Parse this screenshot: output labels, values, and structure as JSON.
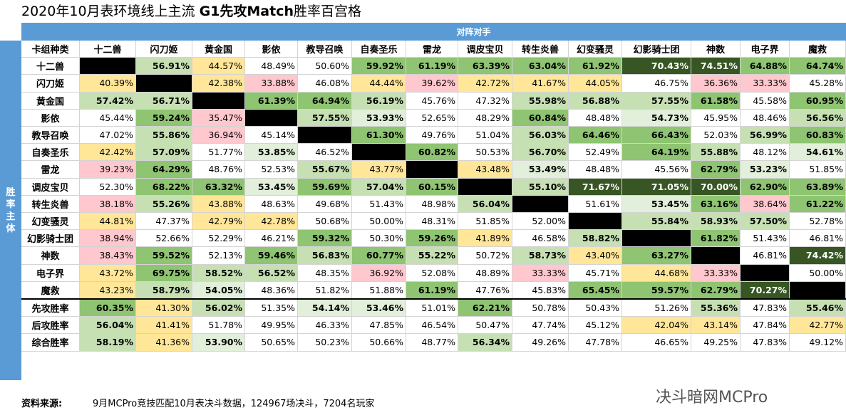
{
  "title_prefix": "2020年10月表环境线上主流 ",
  "title_bold": "G1先攻Match",
  "title_suffix": "胜率百宫格",
  "chart_data": {
    "type": "heatmap",
    "top_header": "对阵对手",
    "side_header": [
      "胜",
      "率",
      "主",
      "体"
    ],
    "corner_label": "卡组种类",
    "columns": [
      "十二兽",
      "闪刀姬",
      "黄金国",
      "影依",
      "教导召唤",
      "自奏圣乐",
      "雷龙",
      "调皮宝贝",
      "转生炎兽",
      "幻变骚灵",
      "幻影骑士团",
      "神数",
      "电子界",
      "魔救"
    ],
    "matrix_rows": [
      {
        "name": "十二兽",
        "values": [
          "",
          "56.91%",
          "44.57%",
          "48.49%",
          "50.60%",
          "59.92%",
          "61.19%",
          "63.39%",
          "63.04%",
          "61.92%",
          "70.43%",
          "74.51%",
          "64.88%",
          "64.74%"
        ]
      },
      {
        "name": "闪刀姬",
        "values": [
          "40.39%",
          "",
          "42.38%",
          "33.88%",
          "46.08%",
          "44.44%",
          "39.62%",
          "42.72%",
          "41.67%",
          "44.05%",
          "46.75%",
          "36.36%",
          "33.33%",
          "45.28%"
        ]
      },
      {
        "name": "黄金国",
        "values": [
          "57.42%",
          "56.71%",
          "",
          "61.39%",
          "64.94%",
          "56.19%",
          "45.76%",
          "47.32%",
          "55.98%",
          "56.88%",
          "57.55%",
          "61.58%",
          "45.58%",
          "60.95%"
        ]
      },
      {
        "name": "影依",
        "values": [
          "45.44%",
          "59.24%",
          "35.47%",
          "",
          "57.55%",
          "53.93%",
          "52.65%",
          "48.29%",
          "60.84%",
          "48.48%",
          "54.73%",
          "45.95%",
          "48.46%",
          "56.56%"
        ]
      },
      {
        "name": "教导召唤",
        "values": [
          "47.02%",
          "55.86%",
          "36.94%",
          "45.14%",
          "",
          "61.30%",
          "49.76%",
          "51.04%",
          "56.03%",
          "64.46%",
          "66.43%",
          "52.03%",
          "56.99%",
          "60.83%"
        ]
      },
      {
        "name": "自奏圣乐",
        "values": [
          "42.42%",
          "57.09%",
          "51.77%",
          "53.85%",
          "46.52%",
          "",
          "60.82%",
          "50.53%",
          "56.70%",
          "52.49%",
          "64.19%",
          "55.88%",
          "48.12%",
          "54.61%"
        ]
      },
      {
        "name": "雷龙",
        "values": [
          "39.23%",
          "64.29%",
          "48.76%",
          "52.53%",
          "55.67%",
          "43.77%",
          "",
          "43.48%",
          "53.49%",
          "48.48%",
          "45.56%",
          "62.79%",
          "53.23%",
          "51.85%"
        ]
      },
      {
        "name": "调皮宝贝",
        "values": [
          "52.30%",
          "68.22%",
          "63.32%",
          "53.45%",
          "59.69%",
          "57.04%",
          "60.15%",
          "",
          "55.10%",
          "71.67%",
          "71.05%",
          "70.00%",
          "62.90%",
          "63.89%"
        ]
      },
      {
        "name": "转生炎兽",
        "values": [
          "38.18%",
          "55.26%",
          "43.88%",
          "48.63%",
          "49.68%",
          "51.43%",
          "48.98%",
          "56.04%",
          "",
          "51.61%",
          "53.45%",
          "63.16%",
          "38.64%",
          "61.22%"
        ]
      },
      {
        "name": "幻变骚灵",
        "values": [
          "44.81%",
          "47.37%",
          "42.79%",
          "42.78%",
          "50.68%",
          "50.00%",
          "48.31%",
          "51.85%",
          "52.00%",
          "",
          "55.84%",
          "58.93%",
          "57.50%",
          "52.78%"
        ]
      },
      {
        "name": "幻影骑士团",
        "values": [
          "38.94%",
          "52.66%",
          "52.29%",
          "46.21%",
          "59.32%",
          "50.30%",
          "59.26%",
          "41.89%",
          "46.58%",
          "58.82%",
          "",
          "61.82%",
          "51.43%",
          "46.81%"
        ]
      },
      {
        "name": "神数",
        "values": [
          "38.43%",
          "59.52%",
          "52.13%",
          "59.46%",
          "56.83%",
          "60.77%",
          "55.22%",
          "50.72%",
          "58.73%",
          "43.40%",
          "63.27%",
          "",
          "46.81%",
          "74.42%"
        ]
      },
      {
        "name": "电子界",
        "values": [
          "43.72%",
          "69.75%",
          "58.52%",
          "56.52%",
          "48.35%",
          "36.92%",
          "52.08%",
          "48.89%",
          "33.33%",
          "45.71%",
          "44.68%",
          "33.33%",
          "",
          "50.00%"
        ]
      },
      {
        "name": "魔救",
        "values": [
          "43.23%",
          "58.79%",
          "54.05%",
          "48.36%",
          "51.82%",
          "51.88%",
          "61.19%",
          "47.76%",
          "45.83%",
          "65.45%",
          "59.57%",
          "62.79%",
          "70.27%",
          ""
        ]
      }
    ],
    "summary_rows": [
      {
        "name": "先攻胜率",
        "values": [
          "60.35%",
          "41.30%",
          "56.02%",
          "51.35%",
          "54.14%",
          "53.46%",
          "51.01%",
          "62.21%",
          "50.78%",
          "50.43%",
          "51.26%",
          "55.36%",
          "47.83%",
          "55.46%"
        ]
      },
      {
        "name": "后攻胜率",
        "values": [
          "56.04%",
          "41.41%",
          "51.78%",
          "49.95%",
          "46.33%",
          "47.85%",
          "46.54%",
          "50.47%",
          "47.74%",
          "45.12%",
          "42.04%",
          "43.14%",
          "47.84%",
          "42.77%"
        ]
      },
      {
        "name": "综合胜率",
        "values": [
          "58.19%",
          "41.36%",
          "53.90%",
          "50.65%",
          "50.23%",
          "50.66%",
          "48.77%",
          "56.34%",
          "49.26%",
          "47.78%",
          "46.65%",
          "49.25%",
          "47.83%",
          "49.12%"
        ]
      }
    ],
    "colors": {
      "header_blue": "#5b9bd5",
      "diagonal": "#000000",
      "very_high": "#375623",
      "high": "#8fc472",
      "medium_high": "#c6e0b4",
      "slight_high": "#e2efda",
      "low": "#ffe699",
      "very_low": "#ffc7ce"
    }
  },
  "footer": {
    "label": "资料来源:",
    "text": "9月MCPro竞技匹配10月表决斗数据，124967场决斗，7204名玩家"
  },
  "watermark": "决斗暗网MCPro"
}
